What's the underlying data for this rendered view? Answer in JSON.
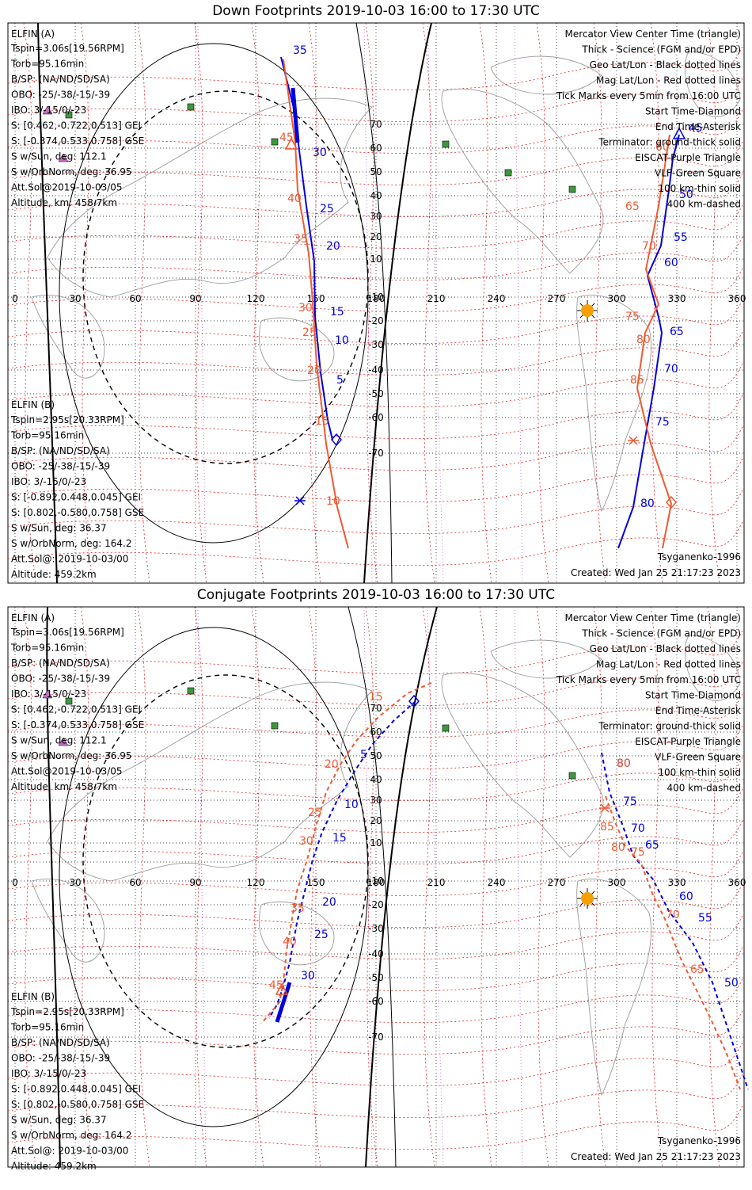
{
  "panels": [
    {
      "title": "Down Footprints 2019-10-03 16:00 to 17:30 UTC",
      "traces": {
        "A": [
          [
            355,
            72
          ],
          [
            372,
            140
          ],
          [
            378,
            190
          ],
          [
            387,
            260
          ],
          [
            397,
            330
          ],
          [
            398,
            400
          ],
          [
            405,
            470
          ],
          [
            414,
            530
          ],
          [
            420,
            555
          ]
        ],
        "A_ticks": [
          [
            "35",
            370,
            68
          ],
          [
            "30",
            395,
            197
          ],
          [
            "25",
            404,
            268
          ],
          [
            "20",
            412,
            315
          ],
          [
            "15",
            417,
            398
          ],
          [
            "10",
            423,
            434
          ],
          [
            "5",
            425,
            484
          ]
        ],
        "B": [
          [
            358,
            75
          ],
          [
            373,
            180
          ],
          [
            376,
            240
          ],
          [
            390,
            320
          ],
          [
            395,
            380
          ],
          [
            400,
            460
          ],
          [
            412,
            560
          ],
          [
            426,
            640
          ],
          [
            440,
            692
          ]
        ],
        "B_ticks": [
          [
            "45",
            353,
            178
          ],
          [
            "40",
            363,
            255
          ],
          [
            "35",
            371,
            306
          ],
          [
            "30",
            377,
            393
          ],
          [
            "25",
            382,
            424
          ],
          [
            "20",
            388,
            472
          ],
          [
            "15",
            398,
            536
          ],
          [
            "10",
            412,
            637
          ]
        ],
        "A2": [
          [
            781,
            692
          ],
          [
            800,
            640
          ],
          [
            812,
            570
          ],
          [
            826,
            490
          ],
          [
            836,
            420
          ],
          [
            832,
            400
          ],
          [
            818,
            348
          ],
          [
            835,
            310
          ],
          [
            845,
            240
          ],
          [
            850,
            200
          ],
          [
            858,
            170
          ]
        ],
        "A2_ticks": [
          [
            "80",
            809,
            640
          ],
          [
            "75",
            828,
            537
          ],
          [
            "70",
            839,
            470
          ],
          [
            "65",
            846,
            423
          ],
          [
            "60",
            839,
            336
          ],
          [
            "55",
            851,
            304
          ],
          [
            "50",
            858,
            250
          ],
          [
            "45",
            870,
            166
          ]
        ],
        "B2": [
          [
            837,
            692
          ],
          [
            848,
            636
          ],
          [
            822,
            560
          ],
          [
            805,
            490
          ],
          [
            815,
            420
          ],
          [
            832,
            384
          ],
          [
            816,
            340
          ],
          [
            832,
            260
          ],
          [
            846,
            170
          ]
        ],
        "B2_ticks": [
          [
            "85",
            796,
            484
          ],
          [
            "80",
            804,
            433
          ],
          [
            "75",
            790,
            404
          ],
          [
            "70",
            811,
            315
          ],
          [
            "65",
            790,
            265
          ],
          [
            "60",
            828,
            190
          ]
        ],
        "diamonds": [
          [
            425,
            555,
            "blue"
          ],
          [
            848,
            634,
            "red"
          ]
        ],
        "asterisks": [
          [
            379,
            632,
            "blue"
          ],
          [
            800,
            556,
            "red"
          ]
        ],
        "triangles": [
          [
            368,
            183,
            "red"
          ],
          [
            858,
            170,
            "blue"
          ]
        ],
        "sun": [
          742,
          392
        ]
      },
      "info_a": {
        "heading": "ELFIN (A)",
        "lines": [
          "Tspin=3.06s[19.56RPM]",
          "Torb=95.16min",
          "B/SP: (NA/ND/SD/SA)",
          "OBO: -25/-38/-15/-39",
          "IBO: 3/-15/0/-23",
          "S: [0.462,-0.722,0.513] GEI",
          "S: [-0.374,0.533,0.758] GSE",
          "S w/Sun, deg: 112.1",
          "S w/OrbNorm, deg: 36.95",
          "Att.Sol@2019-10-03/05",
          "Altitude, km: 458.7km"
        ]
      },
      "info_b": {
        "heading": "ELFIN (B)",
        "lines": [
          "Tspin=2.95s[20.33RPM]",
          "Torb=95.16min",
          "B/SP: (NA/ND/SD/SA)",
          "OBO: -25/-38/-15/-39",
          "IBO: 3/-15/0/-23",
          "S: [-0.892,0.448,0.045] GEI",
          "S: [0.802,-0.580,0.758] GSE",
          "S w/Sun, deg: 36.37",
          "S w/OrbNorm, deg: 164.2",
          "Att.Sol@: 2019-10-03/00",
          "Altitude: 459.2km"
        ]
      },
      "legend": {
        "black": [
          "Mercator View Center Time (triangle)",
          "Thick - Science (FGM and/or EPD)",
          "Geo Lat/Lon - Black dotted lines"
        ],
        "red": "Mag Lat/Lon - Red dotted lines",
        "black2": [
          "Tick Marks every 5min from 16:00 UTC",
          "Start Time-Diamond",
          "End Time-Asterisk",
          "Terminator: ground-thick solid"
        ],
        "purple": "EISCAT-Purple Triangle",
        "green": "VLF-Green Square",
        "black3": [
          "100 km-thin solid",
          "400 km-dashed"
        ]
      },
      "model": "Tsyganenko-1996",
      "created": "Created: Wed Jan 25 21:17:23 2023"
    },
    {
      "title": "Conjugate Footprints 2019-10-03 16:00 to 17:30 UTC",
      "traces": {
        "A": [
          [
            525,
            885
          ],
          [
            497,
            910
          ],
          [
            470,
            940
          ],
          [
            447,
            975
          ],
          [
            426,
            1010
          ],
          [
            407,
            1050
          ],
          [
            395,
            1085
          ],
          [
            385,
            1125
          ],
          [
            375,
            1165
          ],
          [
            366,
            1215
          ],
          [
            357,
            1248
          ],
          [
            350,
            1268
          ],
          [
            340,
            1285
          ]
        ],
        "A_ticks": [
          [
            "5",
            455,
            957
          ],
          [
            "10",
            435,
            1020
          ],
          [
            "15",
            420,
            1062
          ],
          [
            "20",
            407,
            1143
          ],
          [
            "25",
            397,
            1184
          ],
          [
            "30",
            380,
            1236
          ]
        ],
        "B": [
          [
            545,
            862
          ],
          [
            515,
            875
          ],
          [
            478,
            905
          ],
          [
            450,
            935
          ],
          [
            430,
            965
          ],
          [
            412,
            1000
          ],
          [
            400,
            1040
          ],
          [
            388,
            1085
          ],
          [
            375,
            1125
          ],
          [
            368,
            1165
          ],
          [
            362,
            1200
          ],
          [
            358,
            1240
          ],
          [
            353,
            1265
          ],
          [
            330,
            1292
          ]
        ],
        "B_ticks": [
          [
            "15",
            466,
            884
          ],
          [
            "20",
            410,
            969
          ],
          [
            "25",
            389,
            1030
          ],
          [
            "30",
            378,
            1066
          ],
          [
            "35",
            367,
            1151
          ],
          [
            "40",
            357,
            1193
          ],
          [
            "45",
            340,
            1248
          ]
        ],
        "A2": [
          [
            760,
            950
          ],
          [
            770,
            1000
          ],
          [
            786,
            1040
          ],
          [
            800,
            1080
          ],
          [
            825,
            1110
          ],
          [
            845,
            1150
          ],
          [
            875,
            1190
          ],
          [
            900,
            1240
          ],
          [
            930,
            1330
          ],
          [
            945,
            1375
          ]
        ],
        "A2_ticks": [
          [
            "80",
            779,
            968
          ],
          [
            "75",
            787,
            1016
          ],
          [
            "70",
            797,
            1050
          ],
          [
            "65",
            815,
            1071
          ],
          [
            "60",
            858,
            1136
          ],
          [
            "55",
            882,
            1163
          ],
          [
            "50",
            915,
            1245
          ]
        ],
        "B2": [
          [
            765,
            1005
          ],
          [
            778,
            1040
          ],
          [
            790,
            1068
          ],
          [
            810,
            1090
          ],
          [
            825,
            1130
          ],
          [
            840,
            1160
          ],
          [
            860,
            1210
          ],
          [
            895,
            1280
          ],
          [
            918,
            1330
          ],
          [
            935,
            1375
          ]
        ],
        "B2_ticks": [
          [
            "80",
            779,
            968
          ],
          [
            "85",
            758,
            1048
          ],
          [
            "80",
            772,
            1074
          ],
          [
            "75",
            797,
            1080
          ],
          [
            "70",
            841,
            1159
          ],
          [
            "65",
            872,
            1228
          ]
        ],
        "diamonds": [
          [
            523,
            885,
            "blue"
          ]
        ],
        "asterisks": [
          [
            764,
            1020,
            "red"
          ]
        ],
        "triangles": [
          [
            356,
            1250,
            "red"
          ]
        ],
        "sun": [
          742,
          1134
        ]
      },
      "info_a": {
        "heading": "ELFIN (A)",
        "lines": [
          "Tspin=3.06s[19.56RPM]",
          "Torb=95.16min",
          "B/SP: (NA/ND/SD/SA)",
          "OBO: -25/-38/-15/-39",
          "IBO: 3/-15/0/-23",
          "S: [0.462,-0.722,0.513] GEI",
          "S: [-0.374,0.533,0.758] GSE",
          "S w/Sun, deg: 112.1",
          "S w/OrbNorm, deg: 36.95",
          "Att.Sol@2019-10-03/05",
          "Altitude, km: 458.7km"
        ]
      },
      "info_b": {
        "heading": "ELFIN (B)",
        "lines": [
          "Tspin=2.95s[20.33RPM]",
          "Torb=95.16min",
          "B/SP: (NA/ND/SD/SA)",
          "OBO: -25/-38/-15/-39",
          "IBO: 3/-15/0/-23",
          "S: [-0.892,0.448,0.045] GEI",
          "S: [0.802,-0.580,0.758] GSE",
          "S w/Sun, deg: 36.37",
          "S w/OrbNorm, deg: 164.2",
          "Att.Sol@: 2019-10-03/00",
          "Altitude: 459.2km"
        ]
      },
      "legend": {
        "black": [
          "Mercator View Center Time (triangle)",
          "Thick - Science (FGM and/or EPD)",
          "Geo Lat/Lon - Black dotted lines"
        ],
        "red": "Mag Lat/Lon - Red dotted lines",
        "black2": [
          "Tick Marks every 5min from 16:00 UTC",
          "Start Time-Diamond",
          "End Time-Asterisk",
          "Terminator: ground-thick solid"
        ],
        "purple": "EISCAT-Purple Triangle",
        "green": "VLF-Green Square",
        "black3": [
          "100 km-thin solid",
          "400 km-dashed"
        ]
      },
      "model": "Tsyganenko-1996",
      "created": "Created: Wed Jan 25 21:17:23 2023"
    }
  ],
  "lon_ticks": [
    "0",
    "30",
    "60",
    "90",
    "120",
    "150",
    "180",
    "210",
    "240",
    "270",
    "300",
    "330",
    "360"
  ],
  "lat_ticks": [
    "70",
    "60",
    "50",
    "40",
    "30",
    "20",
    "10",
    "-10",
    "-20",
    "-30",
    "-40",
    "-50",
    "-60",
    "-70"
  ],
  "colors": {
    "elfin_a": "#0000dd",
    "elfin_b": "#f05a32",
    "mag_grid": "#e02020",
    "geo_grid": "#000000",
    "eiscat": "#cc66cc",
    "vlf": "#3c9a3c",
    "sun": "#f5a000"
  }
}
